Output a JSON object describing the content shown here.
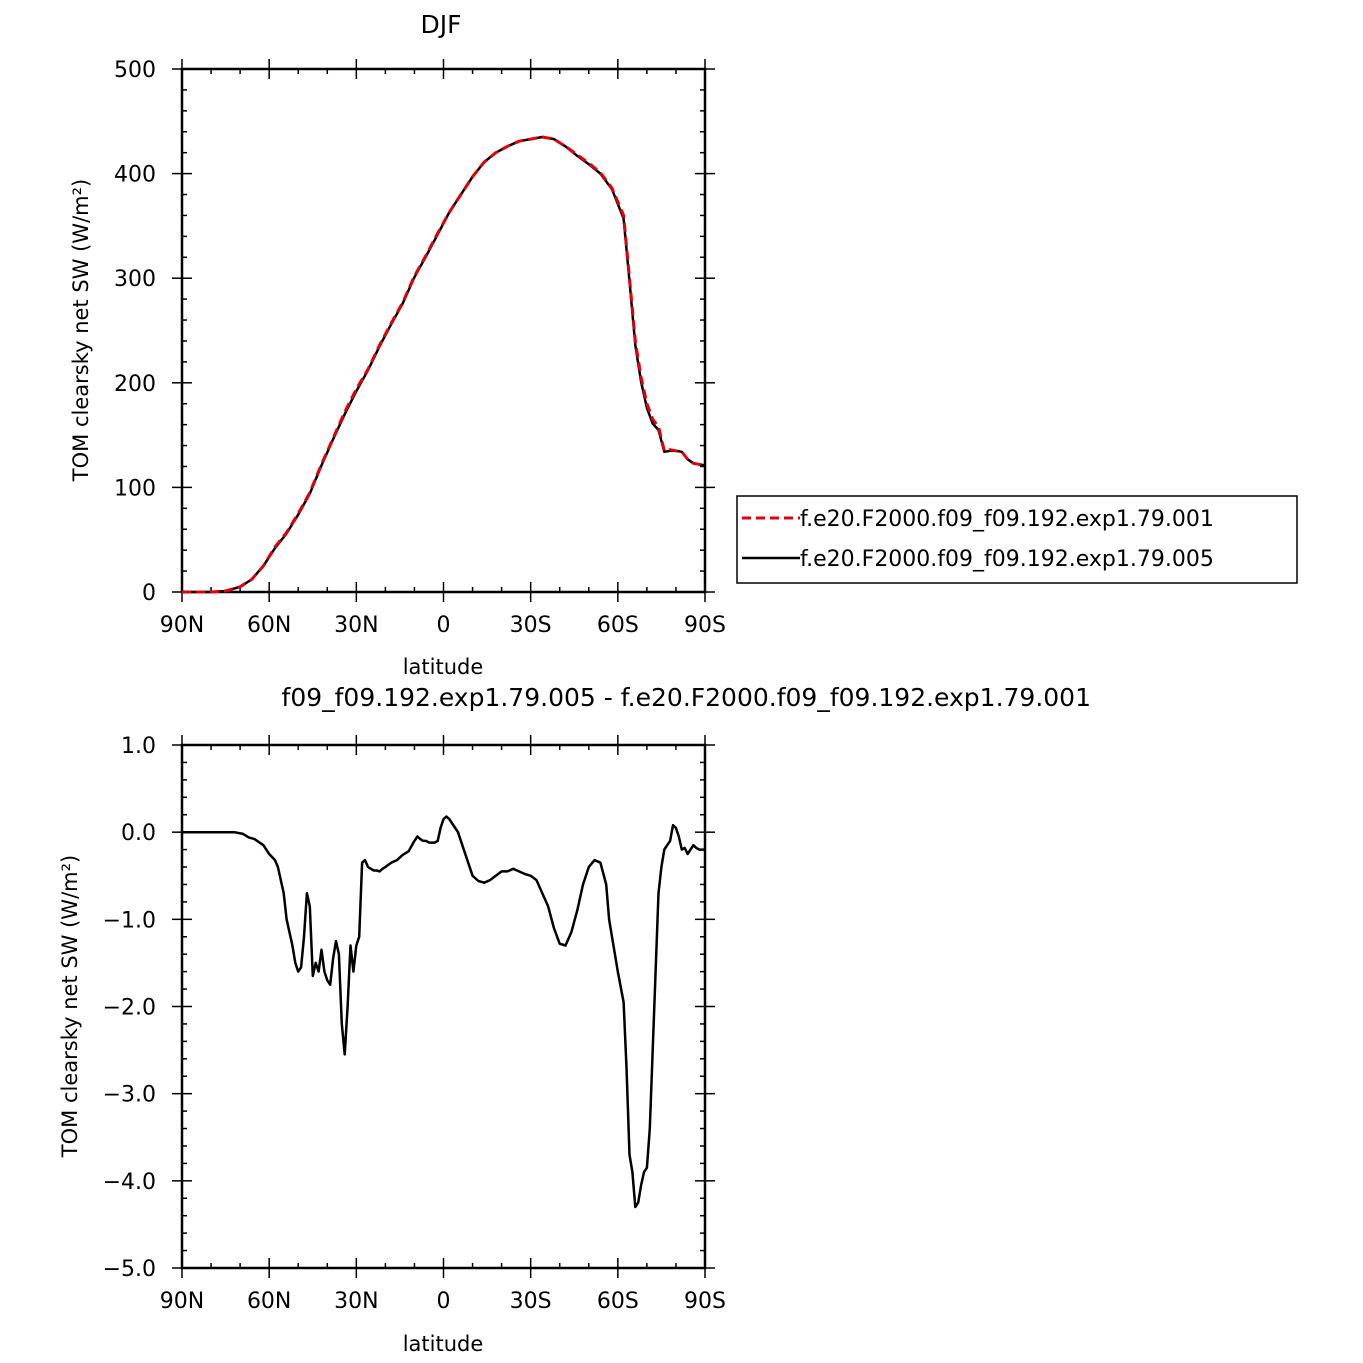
{
  "chart_data": [
    {
      "type": "line",
      "title": "DJF",
      "xlabel": "latitude",
      "ylabel": "TOM clearsky net SW (W/m²)",
      "xlim": [
        90,
        -90
      ],
      "ylim": [
        0,
        500
      ],
      "xticks": [
        {
          "value": 90,
          "label": "90N"
        },
        {
          "value": 60,
          "label": "60N"
        },
        {
          "value": 30,
          "label": "30N"
        },
        {
          "value": 0,
          "label": "0"
        },
        {
          "value": -30,
          "label": "30S"
        },
        {
          "value": -60,
          "label": "60S"
        },
        {
          "value": -90,
          "label": "90S"
        }
      ],
      "yticks": [
        {
          "value": 0,
          "label": "0"
        },
        {
          "value": 100,
          "label": "100"
        },
        {
          "value": 200,
          "label": "200"
        },
        {
          "value": 300,
          "label": "300"
        },
        {
          "value": 400,
          "label": "400"
        },
        {
          "value": 500,
          "label": "500"
        }
      ],
      "grid": false,
      "legend": "right",
      "series": [
        {
          "name": "f.e20.F2000.f09_f09.192.exp1.79.001",
          "color": "#e0000b",
          "dash": "dashed",
          "x": [
            90,
            85,
            80,
            75,
            70,
            66,
            62,
            58,
            54,
            50,
            46,
            42,
            38,
            34,
            30,
            26,
            22,
            18,
            14,
            10,
            6,
            2,
            -2,
            -6,
            -10,
            -14,
            -18,
            -22,
            -26,
            -30,
            -34,
            -38,
            -42,
            -46,
            -50,
            -54,
            -58,
            -62,
            -64,
            -66,
            -68,
            -70,
            -72,
            -74,
            -76,
            -78,
            -80,
            -82,
            -84,
            -86,
            -88,
            -90
          ],
          "y": [
            0,
            0,
            0,
            1,
            5,
            12,
            25,
            43,
            57,
            75,
            95,
            122,
            147,
            172,
            194,
            213,
            236,
            257,
            277,
            302,
            322,
            343,
            363,
            380,
            397,
            411,
            420,
            426,
            431,
            433,
            435,
            433,
            426,
            418,
            410,
            401,
            386,
            360,
            300,
            240,
            205,
            180,
            165,
            158,
            135,
            136,
            135,
            134,
            127,
            123,
            122,
            121
          ]
        },
        {
          "name": "f.e20.F2000.f09_f09.192.exp1.79.005",
          "color": "#000000",
          "dash": "solid",
          "x": [
            90,
            85,
            80,
            75,
            70,
            66,
            62,
            58,
            54,
            50,
            46,
            42,
            38,
            34,
            30,
            26,
            22,
            18,
            14,
            10,
            6,
            2,
            -2,
            -6,
            -10,
            -14,
            -18,
            -22,
            -26,
            -30,
            -34,
            -38,
            -42,
            -46,
            -50,
            -54,
            -58,
            -62,
            -64,
            -66,
            -68,
            -70,
            -72,
            -74,
            -76,
            -78,
            -80,
            -82,
            -84,
            -86,
            -88,
            -90
          ],
          "y": [
            0,
            0,
            0,
            1,
            5,
            12,
            25,
            42,
            56,
            74,
            94,
            121,
            146,
            170,
            192,
            212,
            235,
            256,
            276,
            301,
            321,
            342,
            363,
            380,
            397,
            411,
            420,
            426,
            431,
            433,
            435,
            433,
            426,
            417,
            409,
            400,
            385,
            357,
            297,
            236,
            201,
            176,
            161,
            155,
            134,
            135,
            135,
            134,
            127,
            123,
            122,
            121
          ]
        }
      ]
    },
    {
      "type": "line",
      "title": "f09_f09.192.exp1.79.005 - f.e20.F2000.f09_f09.192.exp1.79.001",
      "xlabel": "latitude",
      "ylabel": "TOM clearsky net SW (W/m²)",
      "xlim": [
        90,
        -90
      ],
      "ylim": [
        -5,
        1
      ],
      "xticks": [
        {
          "value": 90,
          "label": "90N"
        },
        {
          "value": 60,
          "label": "60N"
        },
        {
          "value": 30,
          "label": "30N"
        },
        {
          "value": 0,
          "label": "0"
        },
        {
          "value": -30,
          "label": "30S"
        },
        {
          "value": -60,
          "label": "60S"
        },
        {
          "value": -90,
          "label": "90S"
        }
      ],
      "yticks": [
        {
          "value": 1,
          "label": "1.0"
        },
        {
          "value": 0,
          "label": "0.0"
        },
        {
          "value": -1,
          "label": "−1.0"
        },
        {
          "value": -2,
          "label": "−2.0"
        },
        {
          "value": -3,
          "label": "−3.0"
        },
        {
          "value": -4,
          "label": "−4.0"
        },
        {
          "value": -5,
          "label": "−5.0"
        }
      ],
      "grid": false,
      "series": [
        {
          "color": "#000000",
          "dash": "solid",
          "x": [
            90,
            85,
            80,
            75,
            72,
            69,
            67,
            65,
            62,
            60,
            58,
            57,
            55,
            54,
            52,
            51,
            50,
            49,
            48,
            47,
            46,
            45,
            44,
            43,
            42,
            41,
            40,
            39,
            38,
            37,
            36,
            35,
            34,
            33,
            32,
            31,
            30,
            29,
            28,
            27,
            26,
            25,
            24,
            23,
            22,
            21,
            20,
            18,
            16,
            14,
            12,
            10,
            9,
            8,
            7,
            6,
            5,
            4,
            3,
            2,
            1,
            0,
            -1,
            -2,
            -3,
            -5,
            -7,
            -10,
            -12,
            -14,
            -16,
            -18,
            -20,
            -22,
            -24,
            -26,
            -28,
            -30,
            -32,
            -34,
            -36,
            -38,
            -40,
            -42,
            -44,
            -46,
            -48,
            -50,
            -52,
            -54,
            -56,
            -57,
            -58,
            -60,
            -62,
            -63,
            -64,
            -65,
            -66,
            -67,
            -68,
            -69,
            -70,
            -71,
            -72,
            -73,
            -74,
            -75,
            -76,
            -77,
            -78,
            -79,
            -80,
            -81,
            -82,
            -83,
            -84,
            -85,
            -86,
            -87,
            -88,
            -90
          ],
          "y": [
            0,
            0,
            0,
            0,
            0,
            -0.02,
            -0.06,
            -0.08,
            -0.15,
            -0.25,
            -0.32,
            -0.4,
            -0.7,
            -1.0,
            -1.3,
            -1.5,
            -1.6,
            -1.55,
            -1.2,
            -0.7,
            -0.85,
            -1.65,
            -1.5,
            -1.6,
            -1.35,
            -1.6,
            -1.7,
            -1.75,
            -1.45,
            -1.25,
            -1.4,
            -2.2,
            -2.55,
            -2.0,
            -1.3,
            -1.6,
            -1.3,
            -1.2,
            -0.35,
            -0.32,
            -0.4,
            -0.42,
            -0.44,
            -0.44,
            -0.45,
            -0.42,
            -0.4,
            -0.35,
            -0.32,
            -0.26,
            -0.22,
            -0.1,
            -0.05,
            -0.08,
            -0.1,
            -0.1,
            -0.12,
            -0.12,
            -0.12,
            -0.1,
            0.05,
            0.15,
            0.18,
            0.15,
            0.1,
            0.0,
            -0.2,
            -0.5,
            -0.56,
            -0.58,
            -0.55,
            -0.5,
            -0.45,
            -0.45,
            -0.42,
            -0.45,
            -0.48,
            -0.5,
            -0.55,
            -0.7,
            -0.85,
            -1.1,
            -1.28,
            -1.3,
            -1.15,
            -0.9,
            -0.6,
            -0.4,
            -0.32,
            -0.35,
            -0.6,
            -1.0,
            -1.2,
            -1.6,
            -1.95,
            -2.7,
            -3.7,
            -3.9,
            -4.3,
            -4.25,
            -4.05,
            -3.9,
            -3.85,
            -3.4,
            -2.5,
            -1.6,
            -0.7,
            -0.4,
            -0.2,
            -0.15,
            -0.1,
            0.08,
            0.05,
            -0.05,
            -0.2,
            -0.18,
            -0.25,
            -0.2,
            -0.15,
            -0.18,
            -0.2,
            -0.2
          ]
        }
      ]
    }
  ]
}
